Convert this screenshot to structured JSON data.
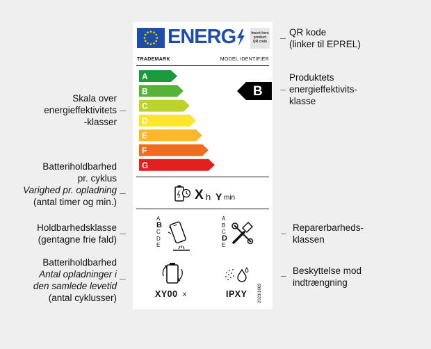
{
  "label": {
    "energy_word": "ENERG",
    "qr_placeholder": [
      "Insert here",
      "product",
      "QR code"
    ],
    "trademark": "TRADEMARK",
    "model_identifier": "MODEL IDENTIFIER",
    "classes": [
      {
        "letter": "A",
        "color": "#1a9a3b"
      },
      {
        "letter": "B",
        "color": "#56b23a"
      },
      {
        "letter": "C",
        "color": "#bcd22d"
      },
      {
        "letter": "D",
        "color": "#fde52a"
      },
      {
        "letter": "E",
        "color": "#fbb82a"
      },
      {
        "letter": "F",
        "color": "#ee6c1e"
      },
      {
        "letter": "G",
        "color": "#e3201f"
      }
    ],
    "current_class": "B",
    "battery_endurance": {
      "x": "X",
      "h": "h",
      "y": "Y",
      "min": "min"
    },
    "drop_scale": [
      "A",
      "B",
      "C",
      "D",
      "E"
    ],
    "drop_selected": "B",
    "repair_scale": [
      "A",
      "B",
      "C",
      "D",
      "E"
    ],
    "repair_selected": "D",
    "cycles_value": "XY00",
    "cycles_suffix": "x",
    "ip_value": "IPXY",
    "regulation": "2023/1669"
  },
  "annotations": {
    "qr": [
      "QR kode",
      "(linker til EPREL)"
    ],
    "product_class": [
      "Produktets",
      "energieffektivits-",
      "klasse"
    ],
    "scale": [
      "Skala over",
      "energieffektivitets",
      "-klasser"
    ],
    "battery": {
      "l1": "Batteriholdbarhed",
      "l2": "pr. cyklus",
      "l3": "Varighed pr. opladning",
      "l4": "(antal timer og min.)"
    },
    "drop": [
      "Holdbarhedsklasse",
      "(gentagne frie fald)"
    ],
    "repair": [
      "Reparerbarheds-",
      "klassen"
    ],
    "cycles": {
      "l1": "Batteriholdbarhed",
      "l2": "Antal opladninger i",
      "l3": "den samlede levetid",
      "l4": "(antal cyklusser)"
    },
    "ingress": [
      "Beskyttelse mod",
      "indtrængning"
    ]
  }
}
